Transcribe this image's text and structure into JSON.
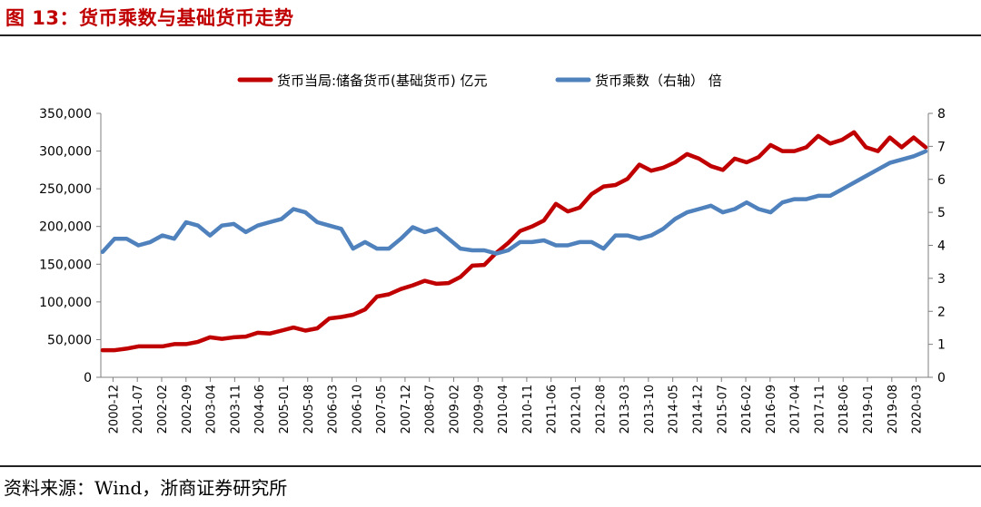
{
  "header": {
    "title": "图 13：货币乘数与基础货币走势"
  },
  "footer": {
    "source": "资料来源：Wind，浙商证券研究所"
  },
  "chart_data": {
    "type": "line",
    "title": "货币乘数与基础货币走势",
    "x_labels": [
      "2000-12",
      "2001-07",
      "2002-02",
      "2002-09",
      "2003-04",
      "2003-11",
      "2004-06",
      "2005-01",
      "2005-08",
      "2006-03",
      "2006-10",
      "2007-05",
      "2007-12",
      "2008-07",
      "2009-02",
      "2009-09",
      "2010-04",
      "2010-11",
      "2011-06",
      "2012-01",
      "2012-08",
      "2013-03",
      "2013-10",
      "2014-05",
      "2014-12",
      "2015-07",
      "2016-02",
      "2016-09",
      "2017-04",
      "2017-11",
      "2018-06",
      "2019-01",
      "2019-08",
      "2020-03"
    ],
    "y_left": {
      "min": 0,
      "max": 350000,
      "ticks": [
        "0",
        "50,000",
        "100,000",
        "150,000",
        "200,000",
        "250,000",
        "300,000",
        "350,000"
      ]
    },
    "y_right": {
      "min": 0,
      "max": 8,
      "ticks": [
        "0",
        "1",
        "2",
        "3",
        "4",
        "5",
        "6",
        "7",
        "8"
      ]
    },
    "legend_position": "top-center",
    "series": [
      {
        "name": "货币当局:储备货币(基础货币) 亿元",
        "axis": "left",
        "color": "#c00000",
        "values": [
          36000,
          36000,
          38000,
          41000,
          41000,
          41000,
          44000,
          44000,
          47000,
          53000,
          51000,
          53000,
          54000,
          59000,
          58000,
          62000,
          66000,
          62000,
          65000,
          78000,
          80000,
          83000,
          90000,
          107000,
          110000,
          117000,
          122000,
          128000,
          124000,
          125000,
          133000,
          148000,
          149000,
          165000,
          178000,
          194000,
          200000,
          208000,
          230000,
          220000,
          225000,
          243000,
          253000,
          255000,
          263000,
          282000,
          274000,
          278000,
          285000,
          296000,
          290000,
          280000,
          275000,
          290000,
          285000,
          292000,
          308000,
          300000,
          300000,
          305000,
          320000,
          310000,
          315000,
          325000,
          305000,
          300000,
          318000,
          305000,
          318000,
          305000
        ]
      },
      {
        "name": "货币乘数（右轴） 倍",
        "axis": "right",
        "color": "#4f81bd",
        "values": [
          3.8,
          4.2,
          4.2,
          4.0,
          4.1,
          4.3,
          4.2,
          4.7,
          4.6,
          4.3,
          4.6,
          4.65,
          4.4,
          4.6,
          4.7,
          4.8,
          5.1,
          5.0,
          4.7,
          4.6,
          4.5,
          3.9,
          4.1,
          3.9,
          3.9,
          4.2,
          4.55,
          4.4,
          4.5,
          4.2,
          3.9,
          3.85,
          3.85,
          3.75,
          3.85,
          4.1,
          4.1,
          4.15,
          4.0,
          4.0,
          4.1,
          4.1,
          3.9,
          4.3,
          4.3,
          4.2,
          4.3,
          4.5,
          4.8,
          5.0,
          5.1,
          5.2,
          5.0,
          5.1,
          5.3,
          5.1,
          5.0,
          5.3,
          5.4,
          5.4,
          5.5,
          5.5,
          5.7,
          5.9,
          6.1,
          6.3,
          6.5,
          6.6,
          6.7,
          6.85
        ]
      }
    ]
  }
}
